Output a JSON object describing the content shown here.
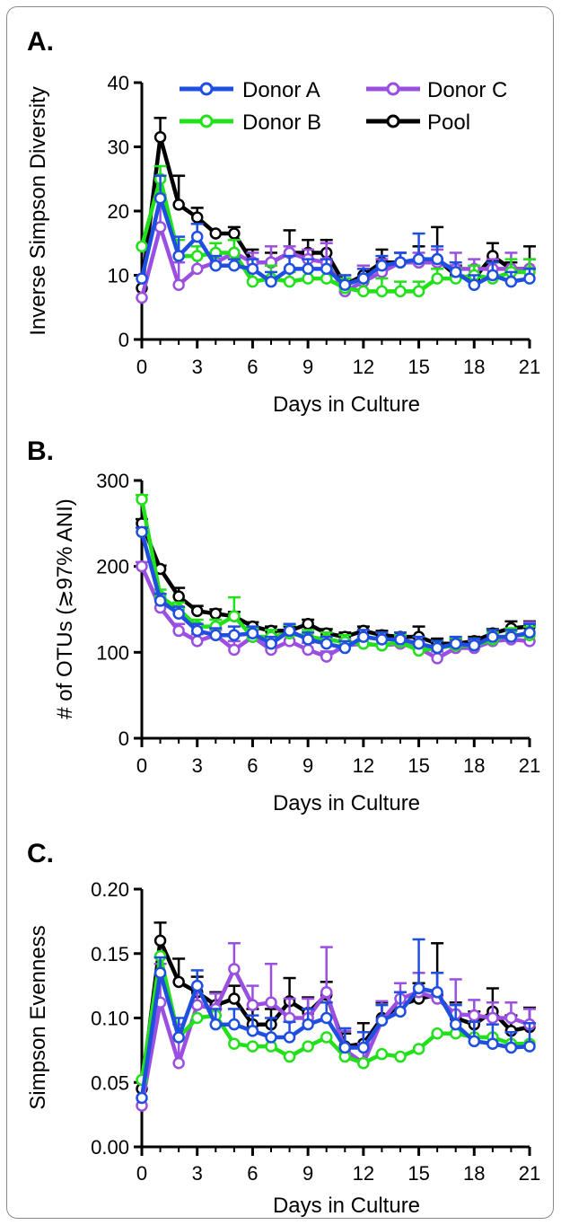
{
  "legend": {
    "items": [
      {
        "name": "Donor A",
        "color": "#1f4fe0"
      },
      {
        "name": "Donor C",
        "color": "#9b4fe0"
      },
      {
        "name": "Donor B",
        "color": "#22e01a"
      },
      {
        "name": "Pool",
        "color": "#000000"
      }
    ]
  },
  "chart_data": [
    {
      "type": "line",
      "panel_label": "A.",
      "xlabel": "Days in Culture",
      "ylabel": "Inverse Simpson Diversity",
      "xlim": [
        0,
        21
      ],
      "ylim": [
        0,
        40
      ],
      "xticks": [
        0,
        3,
        6,
        9,
        12,
        15,
        18,
        21
      ],
      "yticks": [
        0,
        10,
        20,
        30,
        40
      ],
      "x": [
        0,
        1,
        2,
        3,
        4,
        5,
        6,
        7,
        8,
        9,
        10,
        11,
        12,
        13,
        14,
        15,
        16,
        17,
        18,
        19,
        20,
        21
      ],
      "series": [
        {
          "name": "Pool",
          "color": "#000000",
          "values": [
            8,
            31.5,
            21,
            19,
            16.5,
            16.5,
            12,
            12,
            13.5,
            13.5,
            13.5,
            8.5,
            10,
            12,
            12,
            12,
            12.5,
            10,
            9.5,
            13,
            11,
            11
          ],
          "errors": [
            0,
            3,
            4.5,
            1.5,
            0,
            1,
            2,
            1.5,
            3.5,
            2,
            2,
            1,
            1.5,
            2,
            1.5,
            2.5,
            5,
            1.5,
            0,
            2,
            1,
            3.5
          ]
        },
        {
          "name": "Donor C",
          "color": "#9b4fe0",
          "values": [
            6.5,
            17.5,
            8.5,
            11,
            12,
            13.5,
            12,
            12,
            13.5,
            12.5,
            12,
            7.5,
            9,
            10.5,
            12,
            12,
            12,
            11,
            11,
            11,
            11,
            11
          ],
          "errors": [
            0,
            5,
            3.5,
            2,
            1.5,
            2,
            1.5,
            2.5,
            1,
            1.5,
            3,
            2.5,
            2.5,
            2,
            1.5,
            1.5,
            2,
            2.5,
            1.5,
            1.5,
            2.5,
            1.5
          ]
        },
        {
          "name": "Donor B",
          "color": "#22e01a",
          "values": [
            14.5,
            25,
            13,
            13,
            13.5,
            13.5,
            9,
            9.5,
            9,
            9.5,
            9.5,
            8,
            7.5,
            7.5,
            7.5,
            7.5,
            9.5,
            9.5,
            10,
            9.5,
            10.5,
            10.5
          ],
          "errors": [
            0,
            2,
            2.5,
            1.5,
            1.5,
            2,
            1.5,
            2,
            1.5,
            1.5,
            1.5,
            1.5,
            1.5,
            2,
            1.5,
            1.5,
            1.5,
            1.5,
            1.5,
            2.5,
            2,
            2
          ]
        },
        {
          "name": "Donor A",
          "color": "#1f4fe0",
          "values": [
            9.5,
            22,
            13,
            16,
            11.5,
            11.5,
            11,
            9,
            11,
            11,
            11,
            8.5,
            9.5,
            11.5,
            12,
            12.5,
            12.5,
            10.5,
            8.5,
            10,
            9,
            9.5
          ],
          "errors": [
            0,
            3.5,
            3,
            2,
            1.5,
            1,
            1.5,
            1.5,
            2,
            1.5,
            1.5,
            1.5,
            1.5,
            1.5,
            1.5,
            4,
            2,
            1.5,
            1.5,
            2,
            1.5,
            1.5
          ]
        }
      ]
    },
    {
      "type": "line",
      "panel_label": "B.",
      "xlabel": "Days in Culture",
      "ylabel": "# of OTUs (≳97% ANI)",
      "xlim": [
        0,
        21
      ],
      "ylim": [
        0,
        300
      ],
      "xticks": [
        0,
        3,
        6,
        9,
        12,
        15,
        18,
        21
      ],
      "yticks": [
        0,
        100,
        200,
        300
      ],
      "x": [
        0,
        1,
        2,
        3,
        4,
        5,
        6,
        7,
        8,
        9,
        10,
        11,
        12,
        13,
        14,
        15,
        16,
        17,
        18,
        19,
        20,
        21
      ],
      "series": [
        {
          "name": "Pool",
          "color": "#000000",
          "values": [
            250,
            197,
            165,
            148,
            145,
            142,
            130,
            125,
            125,
            133,
            122,
            118,
            125,
            120,
            118,
            118,
            110,
            110,
            113,
            122,
            128,
            130
          ],
          "errors": [
            5,
            4,
            10,
            6,
            5,
            5,
            5,
            5,
            5,
            5,
            5,
            5,
            5,
            5,
            5,
            12,
            6,
            5,
            5,
            5,
            8,
            6
          ]
        },
        {
          "name": "Donor C",
          "color": "#9b4fe0",
          "values": [
            200,
            152,
            125,
            113,
            120,
            103,
            118,
            103,
            113,
            103,
            95,
            108,
            110,
            108,
            110,
            105,
            93,
            105,
            105,
            113,
            115,
            113
          ],
          "errors": [
            5,
            10,
            8,
            8,
            6,
            10,
            8,
            8,
            8,
            8,
            6,
            8,
            8,
            8,
            8,
            8,
            8,
            8,
            8,
            8,
            10,
            22
          ]
        },
        {
          "name": "Donor B",
          "color": "#22e01a",
          "values": [
            278,
            165,
            150,
            130,
            130,
            142,
            118,
            118,
            122,
            118,
            115,
            112,
            110,
            108,
            112,
            102,
            105,
            108,
            108,
            115,
            120,
            120
          ],
          "errors": [
            5,
            8,
            8,
            8,
            8,
            22,
            10,
            8,
            10,
            8,
            8,
            8,
            8,
            8,
            8,
            8,
            8,
            8,
            8,
            8,
            8,
            10
          ]
        },
        {
          "name": "Donor A",
          "color": "#1f4fe0",
          "values": [
            240,
            160,
            145,
            125,
            120,
            120,
            122,
            110,
            125,
            115,
            110,
            105,
            118,
            115,
            115,
            110,
            105,
            110,
            108,
            118,
            118,
            123
          ],
          "errors": [
            5,
            8,
            8,
            8,
            8,
            10,
            8,
            8,
            8,
            8,
            8,
            8,
            8,
            8,
            8,
            8,
            8,
            8,
            8,
            8,
            8,
            10
          ]
        }
      ]
    },
    {
      "type": "line",
      "panel_label": "C.",
      "xlabel": "Days in Culture",
      "ylabel": "Simpson Evenness",
      "xlim": [
        0,
        21
      ],
      "ylim": [
        0,
        0.2
      ],
      "xticks": [
        0,
        3,
        6,
        9,
        12,
        15,
        18,
        21
      ],
      "yticks": [
        "0.00",
        "0.05",
        "0.10",
        "0.15",
        "0.20"
      ],
      "x": [
        0,
        1,
        2,
        3,
        4,
        5,
        6,
        7,
        8,
        9,
        10,
        11,
        12,
        13,
        14,
        15,
        16,
        17,
        18,
        19,
        20,
        21
      ],
      "series": [
        {
          "name": "Pool",
          "color": "#000000",
          "values": [
            0.045,
            0.16,
            0.128,
            0.12,
            0.11,
            0.115,
            0.095,
            0.095,
            0.113,
            0.104,
            0.118,
            0.078,
            0.08,
            0.1,
            0.11,
            0.115,
            0.118,
            0.1,
            0.095,
            0.105,
            0.09,
            0.093
          ],
          "errors": [
            0,
            0.014,
            0.018,
            0.012,
            0.01,
            0.01,
            0.012,
            0.012,
            0.018,
            0.012,
            0.01,
            0.01,
            0.016,
            0.012,
            0.01,
            0.012,
            0.04,
            0.012,
            0.01,
            0.018,
            0.012,
            0.015
          ]
        },
        {
          "name": "Donor C",
          "color": "#9b4fe0",
          "values": [
            0.032,
            0.112,
            0.065,
            0.11,
            0.107,
            0.138,
            0.11,
            0.112,
            0.1,
            0.1,
            0.12,
            0.075,
            0.065,
            0.098,
            0.115,
            0.12,
            0.115,
            0.103,
            0.102,
            0.1,
            0.1,
            0.095
          ],
          "errors": [
            0,
            0.03,
            0.03,
            0.015,
            0.012,
            0.02,
            0.015,
            0.03,
            0.015,
            0.015,
            0.035,
            0.015,
            0.015,
            0.015,
            0.012,
            0.015,
            0.02,
            0.027,
            0.012,
            0.012,
            0.012,
            0.012
          ]
        },
        {
          "name": "Donor B",
          "color": "#22e01a",
          "values": [
            0.052,
            0.148,
            0.085,
            0.1,
            0.102,
            0.08,
            0.078,
            0.078,
            0.07,
            0.078,
            0.085,
            0.07,
            0.065,
            0.072,
            0.07,
            0.076,
            0.088,
            0.088,
            0.085,
            0.085,
            0.08,
            0.08
          ]
        },
        {
          "name": "Donor A",
          "color": "#1f4fe0",
          "values": [
            0.038,
            0.135,
            0.085,
            0.125,
            0.095,
            0.095,
            0.09,
            0.085,
            0.085,
            0.095,
            0.1,
            0.077,
            0.077,
            0.098,
            0.105,
            0.123,
            0.12,
            0.095,
            0.082,
            0.08,
            0.077,
            0.078
          ],
          "errors": [
            0,
            0.012,
            0.015,
            0.012,
            0.012,
            0.012,
            0.012,
            0.015,
            0.012,
            0.012,
            0.012,
            0.015,
            0.012,
            0.012,
            0.015,
            0.038,
            0.015,
            0.015,
            0.015,
            0.015,
            0.012,
            0.018
          ]
        }
      ]
    }
  ]
}
